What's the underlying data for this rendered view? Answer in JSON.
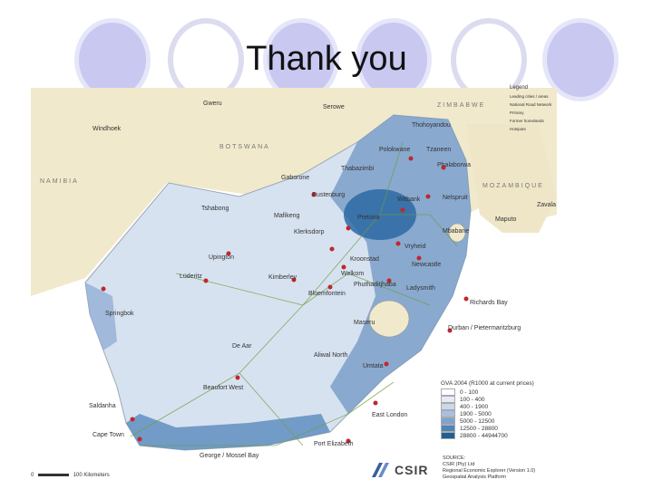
{
  "slide": {
    "title": "Thank you"
  },
  "map": {
    "countries": [
      "ZIMBABWE",
      "BOTSWANA",
      "NAMIBIA",
      "MOZAMBIQUE"
    ],
    "cities": [
      "Gweru",
      "Serowe",
      "Windhoek",
      "Thohoyandou",
      "Polokwane",
      "Phalaborwa",
      "Tzaneen",
      "Thabazimbi",
      "Gaborone",
      "Rustenburg",
      "Witbank",
      "Nelspruit",
      "Tshabong",
      "Mafikeng",
      "Pretoria",
      "Klerksdorp",
      "Mbabane",
      "Vryheid",
      "Maputo",
      "Zavala",
      "Upington",
      "Kroonstad",
      "Newcastle",
      "Welkom",
      "Ladysmith",
      "Bloemfontein",
      "Kimberley",
      "Lüderitz",
      "Springbok",
      "Maseru",
      "Richards Bay",
      "Durban / Pietermaritzburg",
      "De Aar",
      "Aliwal North",
      "Umtata",
      "Beaufort West",
      "East London",
      "Saldanha",
      "Cape Town",
      "Port Elizabeth",
      "George / Mossel Bay",
      "Phuthaditjhaba"
    ]
  },
  "legend_top": {
    "title": "Legend",
    "items": [
      "Leading cities / areas",
      "National Road Network",
      "Primary",
      "Former homelands",
      "Hotspots"
    ]
  },
  "legend": {
    "title": "GVA 2004 (R1000 at current prices)",
    "classes": [
      {
        "label": "0 - 100",
        "color": "#ffffff"
      },
      {
        "label": "100 - 400",
        "color": "#e4ebf5"
      },
      {
        "label": "400 - 1900",
        "color": "#c9d8ec"
      },
      {
        "label": "1900 - 5000",
        "color": "#a9c0e0"
      },
      {
        "label": "5000 - 12500",
        "color": "#7fa3cf"
      },
      {
        "label": "12500 - 28800",
        "color": "#5185b8"
      },
      {
        "label": "28800 - 44944700",
        "color": "#1f5f95"
      }
    ]
  },
  "source": [
    "SOURCE:",
    "CSIR (Pty) Ltd",
    "Regional Economic Explorer (Version 1.0)",
    "Geospatial Analysis Platform"
  ],
  "scale": {
    "start": "0",
    "end": "100",
    "unit": "Kilometers"
  },
  "logo": {
    "text": "CSIR"
  }
}
